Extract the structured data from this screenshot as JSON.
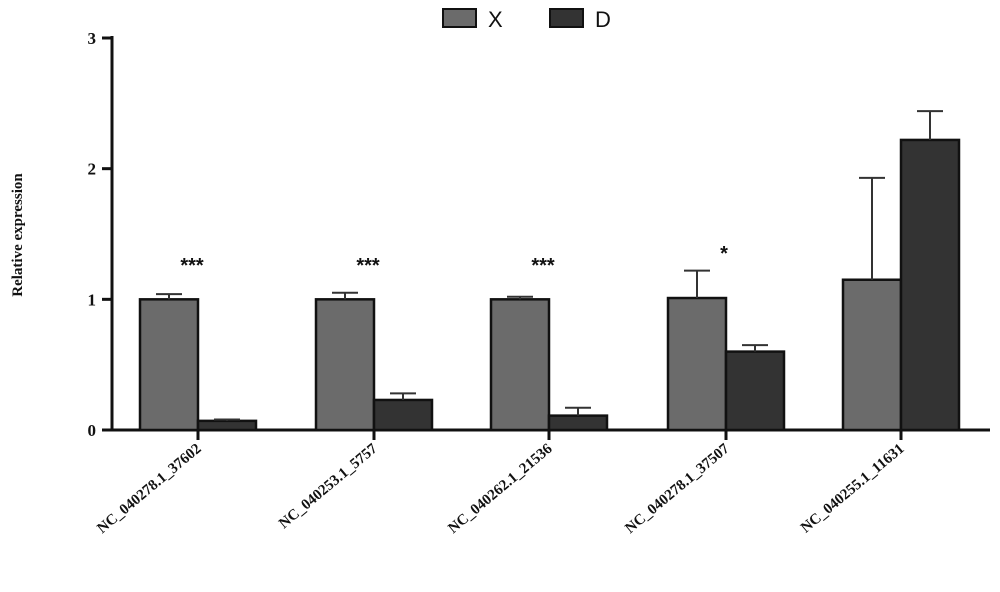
{
  "chart_data": {
    "type": "bar",
    "ylabel": "Relative expression",
    "ylim": [
      0,
      3
    ],
    "yticks": [
      "0",
      "1",
      "2",
      "3"
    ],
    "categories": [
      "NC_040278.1_37602",
      "NC_040253.1_5757",
      "NC_040262.1_21536",
      "NC_040278.1_37507",
      "NC_040255.1_11631"
    ],
    "series": [
      {
        "name": "X",
        "color": "#6b6b6b",
        "values": [
          1.0,
          1.0,
          1.0,
          1.01,
          1.15
        ],
        "errors": [
          0.04,
          0.05,
          0.02,
          0.21,
          0.78
        ]
      },
      {
        "name": "D",
        "color": "#333333",
        "values": [
          0.07,
          0.23,
          0.11,
          0.6,
          2.22
        ],
        "errors": [
          0.01,
          0.05,
          0.06,
          0.05,
          0.22
        ]
      }
    ],
    "significance": [
      "***",
      "***",
      "***",
      "*",
      ""
    ],
    "legend": "top-center",
    "grid": false
  }
}
